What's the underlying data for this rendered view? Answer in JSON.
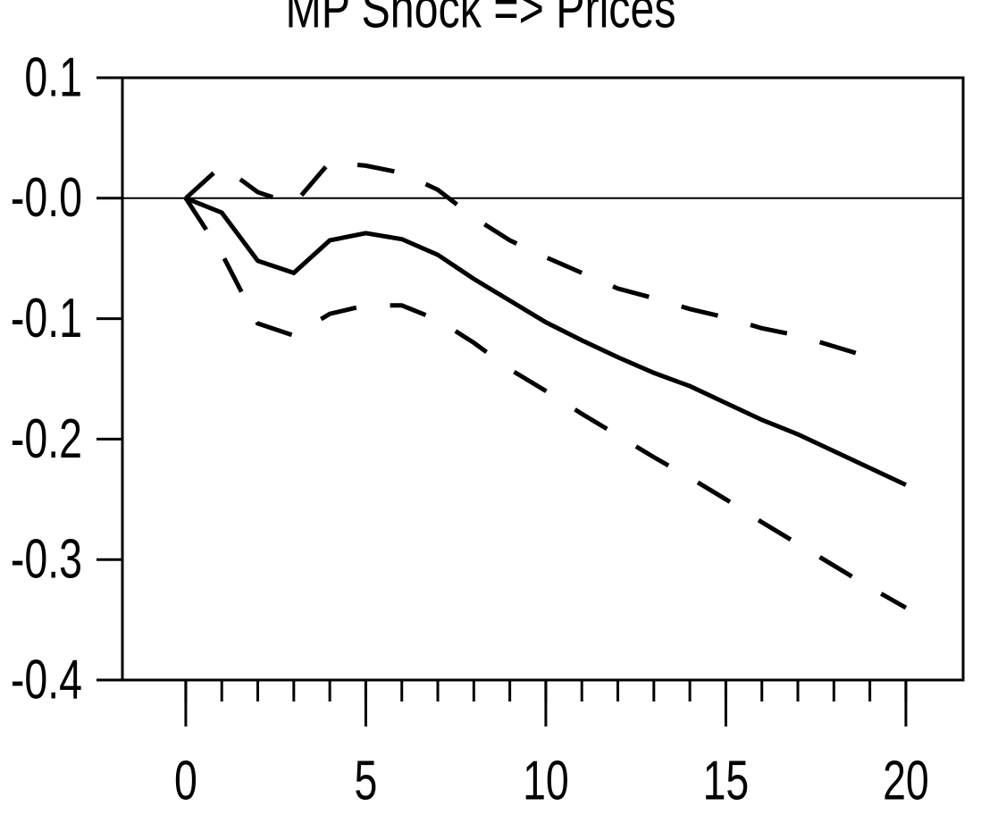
{
  "chart_data": {
    "type": "line",
    "title": "MP Shock => Prices",
    "x": [
      0,
      1,
      2,
      3,
      4,
      5,
      6,
      7,
      8,
      9,
      10,
      11,
      12,
      13,
      14,
      15,
      16,
      17,
      18,
      19,
      20
    ],
    "series": [
      {
        "color": "#000000",
        "style": "solid",
        "values": [
          0,
          -0.012,
          -0.052,
          -0.062,
          -0.035,
          -0.029,
          -0.034,
          -0.047,
          -0.067,
          -0.085,
          -0.103,
          -0.118,
          -0.132,
          -0.145,
          -0.156,
          -0.17,
          -0.184,
          -0.196,
          -0.21,
          -0.224,
          -0.238
        ]
      },
      {
        "color": "#000000",
        "style": "dashed",
        "values": [
          0,
          0.027,
          0.005,
          -0.005,
          0.03,
          0.027,
          0.021,
          0.007,
          -0.016,
          -0.035,
          -0.049,
          -0.062,
          -0.075,
          -0.083,
          -0.092,
          -0.099,
          -0.108,
          -0.114,
          -0.123,
          -0.132,
          null
        ]
      },
      {
        "color": "#000000",
        "style": "dashed",
        "values": [
          0,
          -0.046,
          -0.104,
          -0.114,
          -0.096,
          -0.089,
          -0.089,
          -0.101,
          -0.12,
          -0.142,
          -0.16,
          -0.179,
          -0.197,
          -0.215,
          -0.232,
          -0.25,
          -0.269,
          -0.287,
          -0.305,
          -0.323,
          -0.34
        ]
      }
    ],
    "xlim": [
      -1.76,
      21.59
    ],
    "ylim": [
      -0.4,
      0.1
    ],
    "xticks": [
      0,
      5,
      10,
      15,
      20
    ],
    "xticks_minor": [
      0,
      1,
      2,
      3,
      4,
      5,
      6,
      7,
      8,
      9,
      10,
      11,
      12,
      13,
      14,
      15,
      16,
      17,
      18,
      19,
      20
    ],
    "yticks": [
      0.1,
      {
        "value": 0,
        "label": "-0.0"
      },
      -0.1,
      -0.2,
      -0.3,
      -0.4
    ],
    "zero_line": true
  }
}
